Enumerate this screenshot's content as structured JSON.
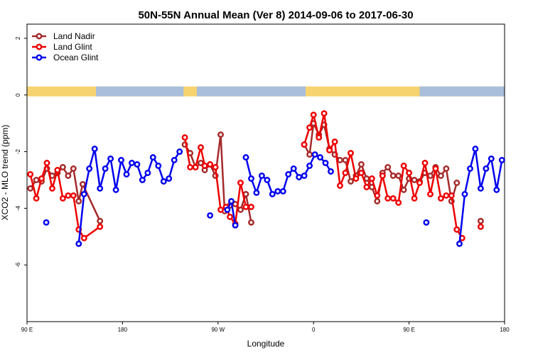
{
  "chart_data": {
    "type": "line",
    "title": "50N-55N Annual Mean (Ver 8)   2014-09-06 to 2017-06-30",
    "xlabel": "Longitude",
    "ylabel": "XCO2 - MLO trend (ppm)",
    "xlim": [
      0,
      360
    ],
    "ylim": [
      -8,
      2.5
    ],
    "x_tick_positions": [
      0,
      72,
      144,
      216,
      288,
      360
    ],
    "x_tick_labels": [
      "90 E",
      "180",
      "90 W",
      "0",
      "90 E",
      "180"
    ],
    "y_ticks": [
      2,
      0,
      -2,
      -4,
      -6
    ],
    "grid": false,
    "legend_position": "top-left",
    "land_ocean_band": {
      "ymin": -0.05,
      "ymax": 0.3,
      "land_color": "#f7d370",
      "ocean_color": "#a8bedb"
    },
    "series": [
      {
        "name": "Land Nadir",
        "color": "#a52a2a",
        "points": [
          [
            2.5,
            -3.3
          ],
          [
            7,
            -3.0
          ],
          [
            11,
            -3.05
          ],
          [
            15,
            -2.6
          ],
          [
            19,
            -2.85
          ],
          [
            23,
            -2.75
          ],
          [
            27,
            -2.55
          ],
          [
            31,
            -2.85
          ],
          [
            35,
            -2.6
          ],
          [
            39,
            -3.75
          ],
          [
            42,
            -3.15
          ],
          [
            55,
            -4.45
          ],
          null,
          [
            119,
            -1.75
          ],
          [
            123,
            -2.05
          ],
          [
            127,
            -2.55
          ],
          [
            131,
            -2.4
          ],
          [
            134,
            -2.65
          ],
          [
            138,
            -2.45
          ],
          [
            142,
            -2.85
          ],
          [
            146,
            -1.4
          ],
          [
            149,
            -4.1
          ],
          [
            153,
            -3.9
          ],
          [
            157,
            -3.85
          ],
          [
            161,
            -4.05
          ],
          [
            165,
            -3.5
          ],
          [
            169,
            -4.5
          ],
          null,
          [
            209,
            -1.75
          ],
          [
            213,
            -2.1
          ],
          [
            216,
            -1.0
          ],
          [
            220,
            -1.4
          ],
          [
            224,
            -1.05
          ],
          [
            228,
            -1.9
          ],
          [
            232,
            -2.1
          ],
          [
            236,
            -2.3
          ],
          [
            240,
            -2.3
          ],
          [
            244,
            -3.05
          ],
          [
            248,
            -2.85
          ],
          [
            252,
            -2.45
          ],
          [
            256,
            -2.95
          ],
          [
            260,
            -3.25
          ],
          [
            264,
            -3.75
          ],
          [
            268,
            -2.75
          ],
          [
            272,
            -2.55
          ],
          [
            276,
            -2.85
          ],
          [
            280,
            -2.85
          ],
          [
            284,
            -3.35
          ],
          [
            288,
            -2.95
          ],
          [
            292,
            -3.0
          ],
          [
            296,
            -3.05
          ],
          [
            300,
            -2.75
          ],
          [
            304,
            -2.85
          ],
          [
            308,
            -2.55
          ],
          [
            312,
            -2.85
          ],
          [
            316,
            -2.6
          ],
          [
            320,
            -3.75
          ],
          [
            324,
            -3.1
          ],
          null,
          [
            342,
            -4.45
          ]
        ]
      },
      {
        "name": "Land Glint",
        "color": "#ee0000",
        "points": [
          [
            2.5,
            -2.8
          ],
          [
            7,
            -3.65
          ],
          [
            11,
            -2.95
          ],
          [
            15,
            -2.4
          ],
          [
            19,
            -3.3
          ],
          [
            23,
            -2.65
          ],
          [
            27,
            -3.65
          ],
          [
            31,
            -3.55
          ],
          [
            35,
            -3.55
          ],
          [
            39,
            -4.75
          ],
          [
            43,
            -5.05
          ],
          [
            55,
            -4.65
          ],
          null,
          [
            119,
            -1.5
          ],
          [
            123,
            -2.55
          ],
          [
            127,
            -2.55
          ],
          [
            131,
            -1.85
          ],
          [
            134,
            -2.5
          ],
          [
            138,
            -2.45
          ],
          [
            142,
            -2.55
          ],
          [
            146,
            -4.05
          ],
          [
            150,
            -3.95
          ],
          [
            153,
            -4.3
          ],
          [
            157,
            -4.55
          ],
          [
            161,
            -3.1
          ],
          [
            165,
            -3.95
          ],
          [
            169,
            -3.95
          ],
          null,
          [
            209,
            -1.75
          ],
          [
            213,
            -1.15
          ],
          [
            216,
            -0.7
          ],
          [
            220,
            -1.5
          ],
          [
            224,
            -0.65
          ],
          [
            228,
            -1.95
          ],
          [
            232,
            -1.65
          ],
          [
            236,
            -3.2
          ],
          [
            240,
            -2.75
          ],
          [
            244,
            -2.05
          ],
          [
            248,
            -2.95
          ],
          [
            252,
            -2.75
          ],
          [
            256,
            -3.25
          ],
          [
            260,
            -2.95
          ],
          [
            264,
            -3.55
          ],
          [
            268,
            -2.85
          ],
          [
            272,
            -3.65
          ],
          [
            276,
            -3.65
          ],
          [
            280,
            -3.8
          ],
          [
            284,
            -2.5
          ],
          [
            288,
            -2.75
          ],
          [
            292,
            -3.65
          ],
          [
            296,
            -3.1
          ],
          [
            300,
            -2.4
          ],
          [
            304,
            -3.5
          ],
          [
            308,
            -2.6
          ],
          [
            312,
            -3.65
          ],
          [
            316,
            -3.55
          ],
          [
            320,
            -3.55
          ],
          [
            324,
            -4.75
          ],
          [
            328,
            -5.05
          ],
          null,
          [
            342,
            -4.65
          ]
        ]
      },
      {
        "name": "Ocean Glint",
        "color": "#0000ee",
        "points": [
          [
            14.5,
            -4.5
          ],
          null,
          [
            39,
            -5.25
          ],
          [
            43,
            -3.5
          ],
          [
            47,
            -2.6
          ],
          [
            51,
            -1.9
          ],
          [
            55,
            -3.3
          ],
          [
            59,
            -2.6
          ],
          [
            63,
            -2.25
          ],
          [
            67,
            -3.35
          ],
          [
            71,
            -2.3
          ],
          [
            75,
            -2.8
          ],
          [
            79,
            -2.4
          ],
          [
            83,
            -2.45
          ],
          [
            87,
            -3.0
          ],
          [
            91,
            -2.75
          ],
          [
            95,
            -2.2
          ],
          [
            99,
            -2.5
          ],
          [
            103,
            -3.05
          ],
          [
            107,
            -2.95
          ],
          [
            111,
            -2.3
          ],
          [
            115,
            -2.0
          ],
          null,
          [
            138,
            -4.25
          ],
          null,
          [
            151,
            -4.05
          ],
          [
            154,
            -3.75
          ],
          [
            157,
            -4.6
          ],
          null,
          [
            165,
            -2.2
          ],
          [
            169,
            -2.95
          ],
          [
            173,
            -3.45
          ],
          [
            177,
            -2.85
          ],
          [
            181,
            -3.0
          ],
          [
            185,
            -3.5
          ],
          [
            189,
            -3.4
          ],
          [
            193,
            -3.4
          ],
          [
            197,
            -2.8
          ],
          [
            201,
            -2.6
          ],
          [
            205,
            -2.9
          ],
          [
            209,
            -2.85
          ],
          [
            213,
            -2.5
          ],
          [
            217,
            -2.1
          ],
          [
            221,
            -2.2
          ],
          [
            225,
            -2.4
          ],
          [
            229,
            -2.7
          ],
          null,
          [
            301,
            -4.5
          ],
          null,
          [
            326,
            -5.25
          ],
          [
            330,
            -3.5
          ],
          [
            334,
            -2.6
          ],
          [
            338,
            -1.9
          ],
          [
            342,
            -3.3
          ],
          [
            346,
            -2.6
          ],
          [
            350,
            -2.25
          ],
          [
            354,
            -3.35
          ],
          [
            358,
            -2.3
          ]
        ]
      }
    ]
  }
}
